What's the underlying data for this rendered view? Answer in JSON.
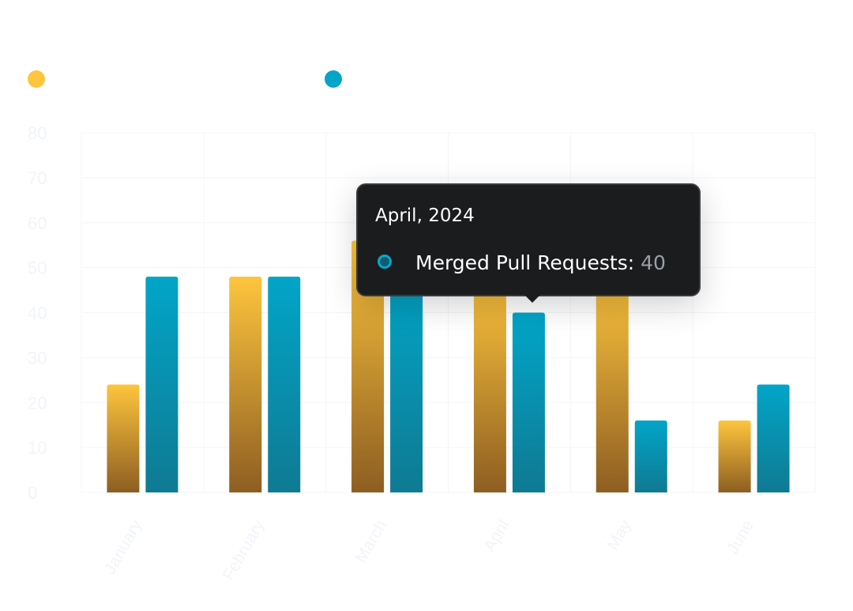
{
  "chart_data": {
    "type": "bar",
    "categories": [
      "January",
      "February",
      "March",
      "April",
      "May",
      "June"
    ],
    "series": [
      {
        "name": "",
        "values": [
          24,
          48,
          56,
          48,
          48,
          16
        ],
        "color_top": "#fec53d",
        "color_bottom": "#8d5e22"
      },
      {
        "name": "Merged Pull Requests",
        "values": [
          48,
          48,
          48,
          40,
          16,
          24
        ],
        "color_top": "#02a5c8",
        "color_bottom": "#0f7a93"
      }
    ],
    "yticks": [
      0,
      10,
      20,
      30,
      40,
      50,
      60,
      70,
      80
    ],
    "ylim": [
      0,
      80
    ],
    "grid": true,
    "xlabel": "",
    "ylabel": "",
    "title": ""
  },
  "legend": {
    "items": [
      {
        "label": "",
        "color": "#fec53d"
      },
      {
        "label": "",
        "color": "#02a5c8"
      }
    ]
  },
  "tooltip": {
    "title": "April, 2024",
    "series_label": "Merged Pull Requests:",
    "value": "40",
    "dot_color": "#0ea5c7"
  },
  "colors": {
    "grid": "#f4f5f7",
    "tick_text": "#f1f4f8",
    "tooltip_bg": "#1b1c1e"
  }
}
